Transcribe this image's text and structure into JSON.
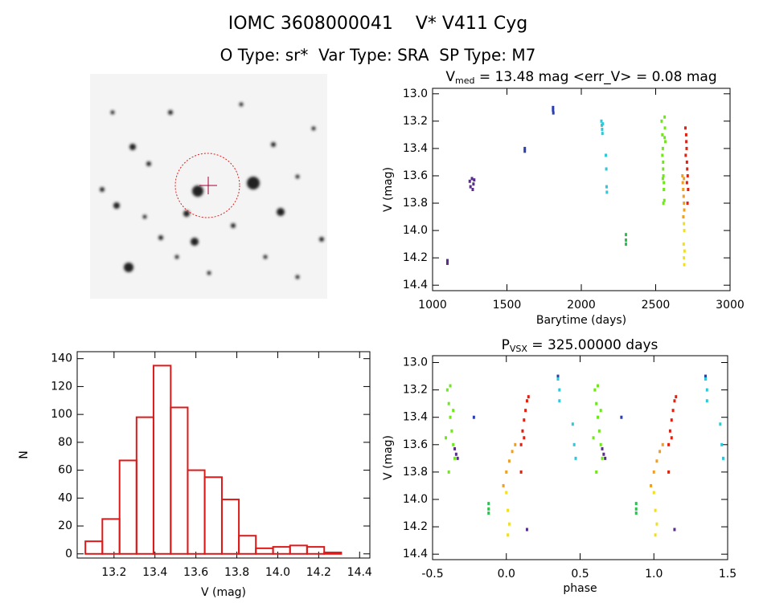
{
  "title": "IOMC 3608000041    V* V411 Cyg",
  "subtitle": "O Type: sr*  Var Type: SRA  SP Type: M7",
  "chart_data": [
    {
      "type": "scatter",
      "title": {
        "main": "V",
        "sub": "med",
        "rest": " = 13.48 mag <err_V> = 0.08 mag"
      },
      "x_label": "Barytime (days)",
      "y_label": "V (mag)",
      "xlim": [
        1000,
        3000
      ],
      "xticks": [
        1000,
        1500,
        2000,
        2500,
        3000
      ],
      "ylim": [
        14.44,
        12.96
      ],
      "yticks": [
        {
          "value": 13,
          "label": "13.0"
        },
        13.2,
        13.4,
        13.6,
        13.8,
        {
          "value": 14,
          "label": "14.0"
        },
        14.2,
        14.4
      ],
      "series": [
        {
          "color": "#5a2d8c",
          "x": [
            1100,
            1100,
            1250,
            1255,
            1265,
            1270,
            1275,
            1280
          ],
          "values": [
            14.22,
            14.24,
            13.64,
            13.68,
            13.62,
            13.7,
            13.66,
            13.63
          ]
        },
        {
          "color": "#2a3fb0",
          "x": [
            1620,
            1620,
            1810,
            1810,
            1812
          ],
          "values": [
            13.4,
            13.42,
            13.1,
            13.12,
            13.14
          ]
        },
        {
          "color": "#2ec8d8",
          "x": [
            2135,
            2138,
            2140,
            2142,
            2145,
            2165,
            2168,
            2170,
            2172
          ],
          "values": [
            13.2,
            13.23,
            13.26,
            13.29,
            13.22,
            13.45,
            13.55,
            13.68,
            13.72
          ]
        },
        {
          "color": "#2fbf50",
          "x": [
            2300,
            2300,
            2300
          ],
          "values": [
            14.03,
            14.07,
            14.1
          ]
        },
        {
          "color": "#6ee81a",
          "x": [
            2540,
            2545,
            2548,
            2550,
            2552,
            2555,
            2558,
            2560,
            2562,
            2565,
            2545,
            2550,
            2555,
            2560,
            2548,
            2552
          ],
          "values": [
            13.2,
            13.3,
            13.4,
            13.5,
            13.6,
            13.7,
            13.78,
            13.17,
            13.25,
            13.35,
            13.45,
            13.55,
            13.65,
            13.32,
            13.62,
            13.8
          ]
        },
        {
          "color": "#f0a020",
          "x": [
            2680,
            2685,
            2690,
            2682,
            2688,
            2692,
            2686,
            2690
          ],
          "values": [
            13.6,
            13.7,
            13.8,
            13.65,
            13.75,
            13.85,
            13.9,
            13.62
          ]
        },
        {
          "color": "#f0e020",
          "x": [
            2690,
            2692,
            2688,
            2694,
            2690,
            2692
          ],
          "values": [
            13.95,
            14.0,
            14.1,
            14.15,
            14.2,
            14.25
          ]
        },
        {
          "color": "#e02010",
          "x": [
            2700,
            2705,
            2708,
            2710,
            2712,
            2715,
            2718,
            2706,
            2702,
            2710,
            2714
          ],
          "values": [
            13.25,
            13.3,
            13.4,
            13.5,
            13.55,
            13.6,
            13.7,
            13.35,
            13.45,
            13.65,
            13.8
          ]
        }
      ]
    },
    {
      "type": "histogram",
      "x_label": "V (mag)",
      "y_label": "N",
      "bins": [
        13.06,
        13.143,
        13.227,
        13.31,
        13.393,
        13.477,
        13.56,
        13.643,
        13.727,
        13.81,
        13.893,
        13.977,
        14.06,
        14.143,
        14.227,
        14.31
      ],
      "values": [
        9,
        25,
        67,
        98,
        135,
        105,
        60,
        55,
        39,
        13,
        4,
        5,
        6,
        5,
        1
      ],
      "color": "#dd1a1a",
      "xlim": [
        13.02,
        14.45
      ],
      "xticks": [
        13.2,
        13.4,
        13.6,
        13.8,
        {
          "value": 14,
          "label": "14.0"
        },
        14.2,
        14.4
      ],
      "ylim": [
        -3,
        145
      ],
      "yticks": [
        0,
        20,
        40,
        60,
        80,
        100,
        120,
        140
      ]
    },
    {
      "type": "scatter",
      "title": {
        "main": "P",
        "sub": "VSX",
        "rest": " = 325.00000 days"
      },
      "x_label": "phase",
      "y_label": "V (mag)",
      "xlim": [
        -0.5,
        1.5
      ],
      "xticks": [
        -0.5,
        {
          "value": 0,
          "label": "0.0"
        },
        0.5,
        {
          "value": 1,
          "label": "1.0"
        },
        1.5
      ],
      "ylim": [
        14.44,
        12.95
      ],
      "yticks": [
        {
          "value": 13,
          "label": "13.0"
        },
        13.2,
        13.4,
        13.6,
        13.8,
        {
          "value": 14,
          "label": "14.0"
        },
        14.2,
        14.4
      ],
      "series": [
        {
          "color": "#5a2d8c",
          "x": [
            -0.35,
            -0.34,
            -0.33,
            0.14,
            0.65,
            0.66,
            0.67,
            1.14
          ],
          "values": [
            13.63,
            13.67,
            13.7,
            14.22,
            13.63,
            13.67,
            13.7,
            14.22
          ]
        },
        {
          "color": "#2a3fb0",
          "x": [
            -0.22,
            0.78,
            0.35,
            1.35
          ],
          "values": [
            13.4,
            13.4,
            13.1,
            13.1
          ]
        },
        {
          "color": "#2ec8d8",
          "x": [
            0.35,
            0.36,
            0.36,
            0.45,
            0.46,
            0.47,
            1.35,
            1.36,
            1.36,
            1.45,
            1.46,
            1.47
          ],
          "values": [
            13.12,
            13.2,
            13.28,
            13.45,
            13.6,
            13.7,
            13.12,
            13.2,
            13.28,
            13.45,
            13.6,
            13.7
          ]
        },
        {
          "color": "#2fbf50",
          "x": [
            -0.12,
            -0.12,
            -0.12,
            0.88,
            0.88,
            0.88
          ],
          "values": [
            14.03,
            14.07,
            14.1,
            14.03,
            14.07,
            14.1
          ]
        },
        {
          "color": "#6ee81a",
          "x": [
            -0.4,
            -0.39,
            -0.38,
            -0.37,
            -0.36,
            -0.35,
            -0.41,
            -0.38,
            -0.36,
            -0.39,
            0.6,
            0.61,
            0.62,
            0.63,
            0.64,
            0.65,
            0.59,
            0.62,
            0.64,
            0.61
          ],
          "values": [
            13.2,
            13.3,
            13.4,
            13.5,
            13.6,
            13.7,
            13.55,
            13.17,
            13.35,
            13.8,
            13.2,
            13.3,
            13.4,
            13.5,
            13.6,
            13.7,
            13.55,
            13.17,
            13.35,
            13.8
          ]
        },
        {
          "color": "#f0a020",
          "x": [
            -0.02,
            0.0,
            0.02,
            0.04,
            0.06,
            0.98,
            1.0,
            1.02,
            1.04,
            1.06
          ],
          "values": [
            13.9,
            13.8,
            13.72,
            13.65,
            13.6,
            13.9,
            13.8,
            13.72,
            13.65,
            13.6
          ]
        },
        {
          "color": "#f0e020",
          "x": [
            0.0,
            0.01,
            0.02,
            0.01,
            1.0,
            1.01,
            1.02,
            1.01
          ],
          "values": [
            13.95,
            14.08,
            14.18,
            14.26,
            13.95,
            14.08,
            14.18,
            14.26
          ]
        },
        {
          "color": "#e02010",
          "x": [
            0.1,
            0.11,
            0.12,
            0.13,
            0.14,
            0.15,
            0.12,
            0.1,
            1.1,
            1.11,
            1.12,
            1.13,
            1.14,
            1.15,
            1.12,
            1.1
          ],
          "values": [
            13.6,
            13.5,
            13.42,
            13.35,
            13.28,
            13.25,
            13.55,
            13.8,
            13.6,
            13.5,
            13.42,
            13.35,
            13.28,
            13.25,
            13.55,
            13.8
          ]
        }
      ]
    }
  ]
}
